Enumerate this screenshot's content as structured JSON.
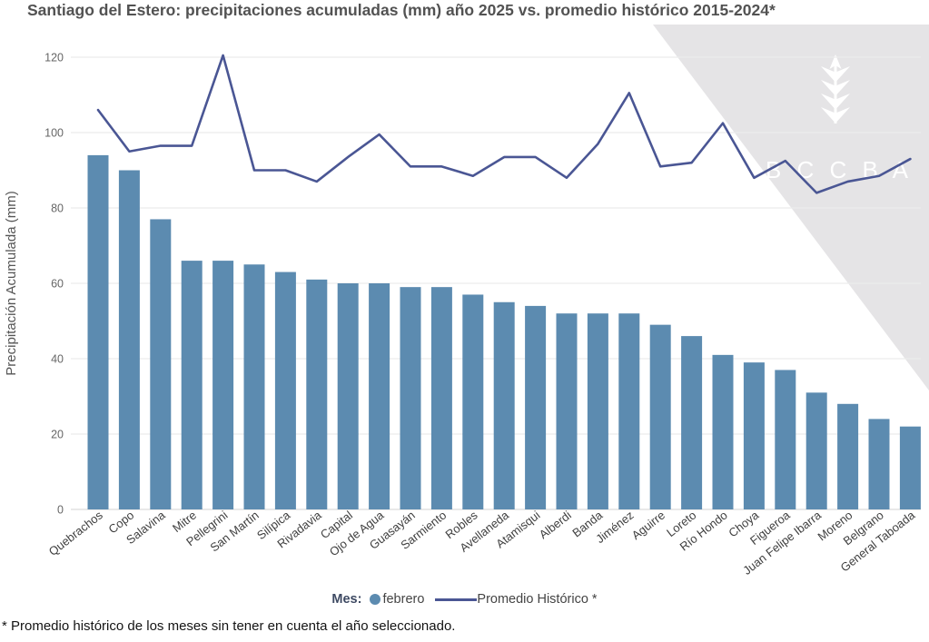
{
  "legend": {
    "month_label": "Mes:",
    "bar_series_label": "febrero",
    "line_series_label": "Promedio Histórico *"
  },
  "footnote": "* Promedio histórico de los meses sin tener en cuenta el año seleccionado.",
  "watermark": {
    "letters": "B C C B A",
    "icon": "wheat-icon"
  },
  "colors": {
    "bar": "#5c8bb0",
    "line": "#4a5694",
    "grid": "#ececec",
    "axis_line": "#dcdcdc",
    "watermark_bg": "#e5e4e6",
    "tick_text": "#666666",
    "category_text": "#3f3f3f",
    "axis_title_text": "#555555",
    "title_text": "#525252"
  },
  "chart_data": {
    "type": "combo_bar_line",
    "title": "Santiago del Estero: precipitaciones acumuladas (mm) año 2025 vs. promedio histórico 2015-2024*",
    "xlabel": "",
    "ylabel": "Precipitación Acumulada (mm)",
    "ylim": [
      0,
      125
    ],
    "yticks": [
      0,
      20,
      40,
      60,
      80,
      100,
      120
    ],
    "grid": true,
    "legend_position": "bottom",
    "categories": [
      "Quebrachos",
      "Copo",
      "Salavina",
      "Mitre",
      "Pellegrini",
      "San Martín",
      "Silípica",
      "Rivadavia",
      "Capital",
      "Ojo de Agua",
      "Guasayán",
      "Sarmiento",
      "Robles",
      "Avellaneda",
      "Atamisqui",
      "Alberdi",
      "Banda",
      "Jiménez",
      "Aguirre",
      "Loreto",
      "Río Hondo",
      "Choya",
      "Figueroa",
      "Juan Felipe Ibarra",
      "Moreno",
      "Belgrano",
      "General Taboada"
    ],
    "series": [
      {
        "name": "febrero",
        "type": "bar",
        "values": [
          94,
          90,
          77,
          66,
          66,
          65,
          63,
          61,
          60,
          60,
          59,
          59,
          57,
          55,
          54,
          52,
          52,
          52,
          49,
          46,
          41,
          39,
          37,
          31,
          28,
          24,
          22
        ]
      },
      {
        "name": "Promedio Histórico *",
        "type": "line",
        "values": [
          106,
          95,
          96.5,
          96.5,
          120.5,
          90,
          90,
          87,
          93.5,
          99.5,
          91,
          91,
          88.5,
          93.5,
          93.5,
          88,
          97,
          110.5,
          91,
          92,
          102.5,
          88,
          92.5,
          84,
          87,
          88.5,
          93
        ]
      }
    ]
  }
}
